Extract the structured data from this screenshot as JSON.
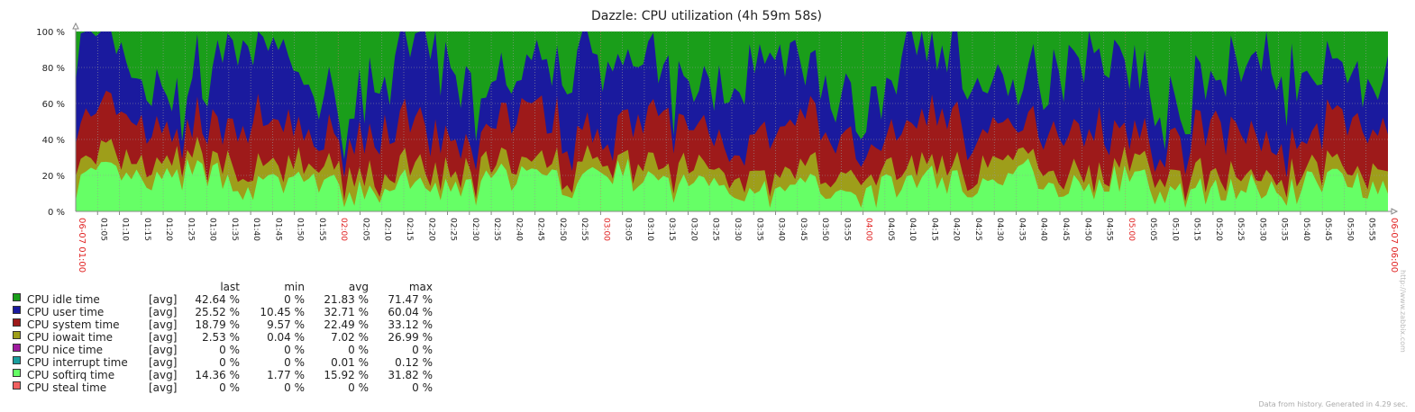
{
  "chart_data": {
    "type": "area",
    "stacked": true,
    "title": "Dazzle: CPU utilization (4h 59m 58s)",
    "ylim": [
      0,
      100
    ],
    "yticks": [
      "0 %",
      "20 %",
      "40 %",
      "60 %",
      "80 %",
      "100 %"
    ],
    "xrange": [
      "06-07 01:00",
      "06-07 06:00"
    ],
    "xticks": [
      "01:05",
      "01:10",
      "01:15",
      "01:20",
      "01:25",
      "01:30",
      "01:35",
      "01:40",
      "01:45",
      "01:50",
      "01:55",
      "02:00",
      "02:05",
      "02:10",
      "02:15",
      "02:20",
      "02:25",
      "02:30",
      "02:35",
      "02:40",
      "02:45",
      "02:50",
      "02:55",
      "03:00",
      "03:05",
      "03:10",
      "03:15",
      "03:20",
      "03:25",
      "03:30",
      "03:35",
      "03:40",
      "03:45",
      "03:50",
      "03:55",
      "04:00",
      "04:05",
      "04:10",
      "04:15",
      "04:20",
      "04:25",
      "04:30",
      "04:35",
      "04:40",
      "04:45",
      "04:50",
      "04:55",
      "05:00",
      "05:05",
      "05:10",
      "05:15",
      "05:20",
      "05:25",
      "05:30",
      "05:35",
      "05:40",
      "05:45",
      "05:50",
      "05:55"
    ],
    "major_ticks": [
      "02:00",
      "03:00",
      "04:00",
      "05:00"
    ],
    "edge_labels": [
      "06-07 01:00",
      "06-07 06:00"
    ],
    "grid": true,
    "legend_position": "bottom-left",
    "legend_header": {
      "last": "last",
      "min": "min",
      "avg": "avg",
      "max": "max"
    },
    "series": [
      {
        "name": "CPU idle time",
        "func": "[avg]",
        "color": "#1A9E1A",
        "last": "42.64 %",
        "min": "0 %",
        "avg": "21.83 %",
        "max": "71.47 %"
      },
      {
        "name": "CPU user time",
        "func": "[avg]",
        "color": "#1A1A9E",
        "last": "25.52 %",
        "min": "10.45 %",
        "avg": "32.71 %",
        "max": "60.04 %"
      },
      {
        "name": "CPU system time",
        "func": "[avg]",
        "color": "#9E1A1A",
        "last": "18.79 %",
        "min": "9.57 %",
        "avg": "22.49 %",
        "max": "33.12 %"
      },
      {
        "name": "CPU iowait time",
        "func": "[avg]",
        "color": "#9E9E1A",
        "last": "2.53 %",
        "min": "0.04 %",
        "avg": "7.02 %",
        "max": "26.99 %"
      },
      {
        "name": "CPU nice time",
        "func": "[avg]",
        "color": "#9E1A9E",
        "last": "0 %",
        "min": "0 %",
        "avg": "0 %",
        "max": "0 %"
      },
      {
        "name": "CPU interrupt time",
        "func": "[avg]",
        "color": "#1A9E9E",
        "last": "0 %",
        "min": "0 %",
        "avg": "0.01 %",
        "max": "0.12 %"
      },
      {
        "name": "CPU softirq time",
        "func": "[avg]",
        "color": "#66FF66",
        "last": "14.36 %",
        "min": "1.77 %",
        "avg": "15.92 %",
        "max": "31.82 %"
      },
      {
        "name": "CPU steal time",
        "func": "[avg]",
        "color": "#F06060",
        "last": "0 %",
        "min": "0 %",
        "avg": "0 %",
        "max": "0 %"
      }
    ]
  },
  "footer": "Data from history. Generated in 4.29 sec.",
  "side_url": "http://www.zabbix.com"
}
